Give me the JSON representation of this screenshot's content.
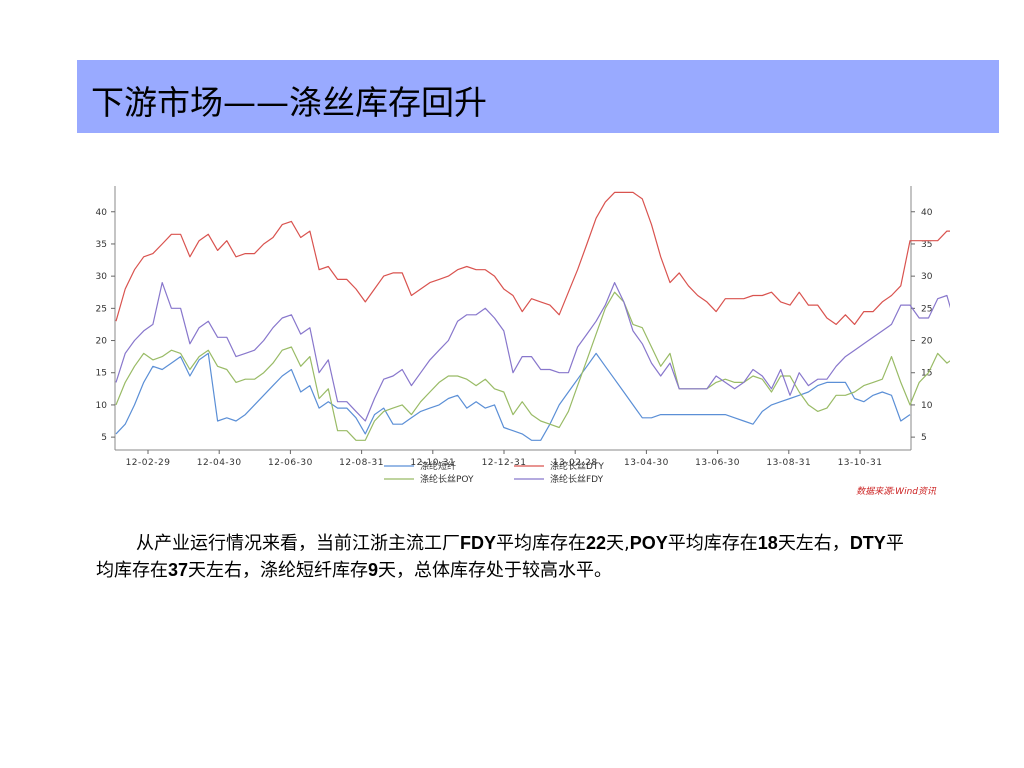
{
  "title": "下游市场——涤丝库存回升",
  "paragraph": [
    {
      "t": "从产业运行情况来看，当前江浙主流工厂",
      "b": false
    },
    {
      "t": "FDY",
      "b": true
    },
    {
      "t": "平均库存在",
      "b": false
    },
    {
      "t": "22",
      "b": true
    },
    {
      "t": "天,",
      "b": false
    },
    {
      "t": "POY",
      "b": true
    },
    {
      "t": "平均库存在",
      "b": false
    },
    {
      "t": "18",
      "b": true
    },
    {
      "t": "天左右，",
      "b": false
    },
    {
      "t": "DTY",
      "b": true
    },
    {
      "t": "平均库存在",
      "b": false
    },
    {
      "t": "37",
      "b": true
    },
    {
      "t": "天左右，涤纶短纤库存",
      "b": false
    },
    {
      "t": "9",
      "b": true
    },
    {
      "t": "天，总体库存处于较高水平。",
      "b": false
    }
  ],
  "chart_data": {
    "type": "line",
    "xlabel": "",
    "ylabel": "",
    "ylim": [
      3,
      44
    ],
    "yticks": [
      5,
      10,
      15,
      20,
      25,
      30,
      35,
      40
    ],
    "xticks": [
      "12-02-29",
      "12-04-30",
      "12-06-30",
      "12-08-31",
      "12-10-31",
      "12-12-31",
      "13-02-28",
      "13-04-30",
      "13-06-30",
      "13-08-31",
      "13-10-31"
    ],
    "source": "数据来源:Wind资讯",
    "legend_position": "bottom",
    "grid": false,
    "series": [
      {
        "name": "涤纶短纤",
        "color": "#5b8fd6",
        "values": [
          5.5,
          7,
          10,
          13.5,
          16,
          15.5,
          16.5,
          17.5,
          14.5,
          17,
          18,
          7.5,
          8,
          7.5,
          8.5,
          10,
          11.5,
          13,
          14.5,
          15.5,
          12,
          13,
          9.5,
          10.5,
          9.5,
          9.5,
          8,
          5.5,
          8.5,
          9.5,
          7,
          7,
          8,
          9,
          9.5,
          10,
          11,
          11.5,
          9.5,
          10.5,
          9.5,
          10,
          6.5,
          6,
          5.5,
          4.5,
          4.5,
          7,
          10,
          12,
          14,
          16,
          18,
          16,
          14,
          12,
          10,
          8,
          8,
          8.5,
          8.5,
          8.5,
          8.5,
          8.5,
          8.5,
          8.5,
          8.5,
          8,
          7.5,
          7,
          9,
          10,
          10.5,
          11,
          11.5,
          12,
          13,
          13.5,
          13.5,
          13.5,
          11,
          10.5,
          11.5,
          12,
          11.5,
          7.5,
          8.5
        ]
      },
      {
        "name": "涤纶长丝DTY",
        "color": "#d9534f",
        "values": [
          23,
          28,
          31,
          33,
          33.5,
          35,
          36.5,
          36.5,
          33,
          35.5,
          36.5,
          34,
          35.5,
          33,
          33.5,
          33.5,
          35,
          36,
          38,
          38.5,
          36,
          37,
          31,
          31.5,
          29.5,
          29.5,
          28,
          26,
          28,
          30,
          30.5,
          30.5,
          27,
          28,
          29,
          29.5,
          30,
          31,
          31.5,
          31,
          31,
          30,
          28,
          27,
          24.5,
          26.5,
          26,
          25.5,
          24,
          27.5,
          31,
          35,
          39,
          41.5,
          43,
          43,
          43,
          42,
          38,
          33,
          29,
          30.5,
          28.5,
          27,
          26,
          24.5,
          26.5,
          26.5,
          26.5,
          27,
          27,
          27.5,
          26,
          25.5,
          27.5,
          25.5,
          25.5,
          23.5,
          22.5,
          24,
          22.5,
          24.5,
          24.5,
          26,
          27,
          28.5,
          35.5,
          35.5,
          35.5,
          35.5,
          37,
          37,
          38
        ]
      },
      {
        "name": "涤纶长丝POY",
        "color": "#99bb66",
        "values": [
          10,
          13.5,
          16,
          18,
          17,
          17.5,
          18.5,
          18,
          15.5,
          17.5,
          18.5,
          16,
          15.5,
          13.5,
          14,
          14,
          15,
          16.5,
          18.5,
          19,
          16,
          17.5,
          11,
          12.5,
          6,
          6,
          4.5,
          4.5,
          7.5,
          9,
          9.5,
          10,
          8.5,
          10.5,
          12,
          13.5,
          14.5,
          14.5,
          14,
          13,
          14,
          12.5,
          12,
          8.5,
          10.5,
          8.5,
          7.5,
          7,
          6.5,
          9,
          13,
          17,
          21,
          25,
          27.5,
          26,
          22.5,
          22,
          19,
          16,
          18,
          12.5,
          12.5,
          12.5,
          12.5,
          13.5,
          14,
          13.5,
          13.5,
          14.5,
          14,
          12,
          14.5,
          14.5,
          12,
          10,
          9,
          9.5,
          11.5,
          11.5,
          12,
          13,
          13.5,
          14,
          17.5,
          13.5,
          10,
          13.5,
          15,
          18,
          16.5,
          17.5
        ]
      },
      {
        "name": "涤纶长丝FDY",
        "color": "#8877cc",
        "values": [
          13.5,
          18,
          20,
          21.5,
          22.5,
          29,
          25,
          25,
          19.5,
          22,
          23,
          20.5,
          20.5,
          17.5,
          18,
          18.5,
          20,
          22,
          23.5,
          24,
          21,
          22,
          15,
          17,
          10.5,
          10.5,
          9,
          7.5,
          11,
          14,
          14.5,
          15.5,
          13,
          15,
          17,
          18.5,
          20,
          23,
          24,
          24,
          25,
          23.5,
          21.5,
          15,
          17.5,
          17.5,
          15.5,
          15.5,
          15,
          15,
          19,
          21,
          23,
          25.5,
          29,
          26,
          21.5,
          19.5,
          16.5,
          14.5,
          16.5,
          12.5,
          12.5,
          12.5,
          12.5,
          14.5,
          13.5,
          12.5,
          13.5,
          15.5,
          14.5,
          12.5,
          15.5,
          11.5,
          15,
          13,
          14,
          14,
          16,
          17.5,
          18.5,
          19.5,
          20.5,
          21.5,
          22.5,
          25.5,
          25.5,
          23.5,
          23.5,
          26.5,
          27,
          22,
          22
        ]
      }
    ]
  }
}
